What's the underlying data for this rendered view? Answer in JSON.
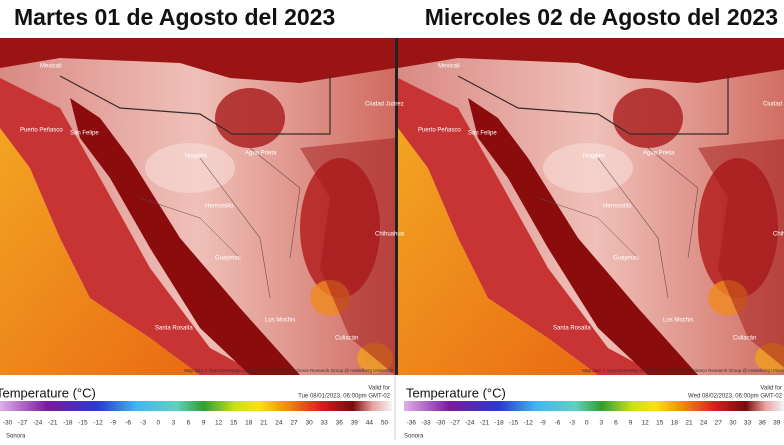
{
  "panels": [
    {
      "title": "Martes 01 de Agosto del 2023",
      "legend_title": "Temperature (°C)",
      "valid_label": "Valid for",
      "valid_time": "Tue 08/01/2023, 06:00pm GMT-02",
      "attribution": "Map data © OpenStreetMap contributors, rendering GIScience Research Group @ Heidelberg University",
      "region": "Sonora",
      "scale_ticks": [
        "-30",
        "-27",
        "-24",
        "-21",
        "-18",
        "-15",
        "-12",
        "-9",
        "-6",
        "-3",
        "0",
        "3",
        "6",
        "9",
        "12",
        "15",
        "18",
        "21",
        "24",
        "27",
        "30",
        "33",
        "36",
        "39",
        "44",
        "50"
      ],
      "places": [
        "Mexicali",
        "San Felipe",
        "Puerto Peñasco",
        "Nogales",
        "Agua Prieta",
        "Hermosillo",
        "Ciudad Juárez",
        "Guaymas",
        "Santa Rosalía",
        "Chihuahua",
        "Los Mochis",
        "Culiacán"
      ]
    },
    {
      "title": "Miercoles 02 de Agosto del 2023",
      "legend_title": "Temperature (°C)",
      "valid_label": "Valid for",
      "valid_time": "Wed 08/02/2023, 06:00pm GMT-02",
      "attribution": "Map data © OpenStreetMap contributors, rendering GIScience Research Group @ Heidelberg University",
      "region": "Sonora",
      "scale_ticks": [
        "-36",
        "-33",
        "-30",
        "-27",
        "-24",
        "-21",
        "-18",
        "-15",
        "-12",
        "-9",
        "-6",
        "-3",
        "0",
        "3",
        "6",
        "9",
        "12",
        "15",
        "18",
        "21",
        "24",
        "27",
        "30",
        "33",
        "36",
        "39"
      ],
      "places": [
        "Mexicali",
        "San Felipe",
        "Puerto Peñasco",
        "Nogales",
        "Agua Prieta",
        "Hermosillo",
        "Ciudad Juárez",
        "Guaymas",
        "Santa Rosalía",
        "Chihuahua",
        "Los Mochis",
        "Culiacán"
      ]
    }
  ]
}
